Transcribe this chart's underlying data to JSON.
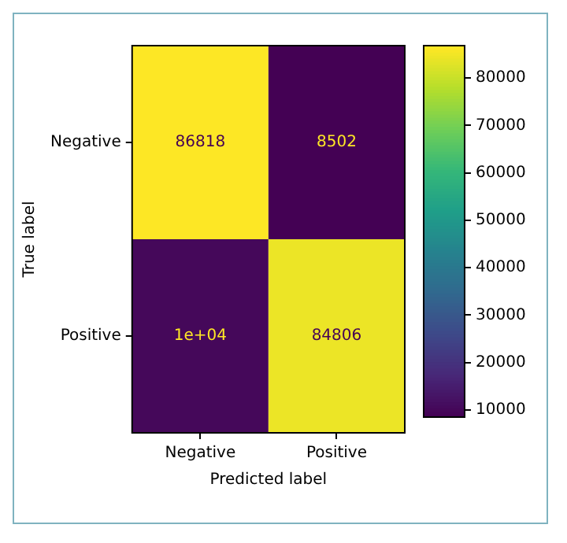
{
  "chart_data": {
    "type": "heatmap",
    "categories": [
      "Negative",
      "Positive"
    ],
    "y_categories": [
      "Negative",
      "Positive"
    ],
    "cells": [
      [
        86818,
        8502
      ],
      [
        10000,
        84806
      ]
    ],
    "cell_labels": [
      [
        "86818",
        "8502"
      ],
      [
        "1e+04",
        "84806"
      ]
    ],
    "clim": [
      8502,
      86818
    ],
    "cticks": [
      10000,
      20000,
      30000,
      40000,
      50000,
      60000,
      70000,
      80000
    ],
    "xlabel": "Predicted label",
    "ylabel": "True label"
  }
}
